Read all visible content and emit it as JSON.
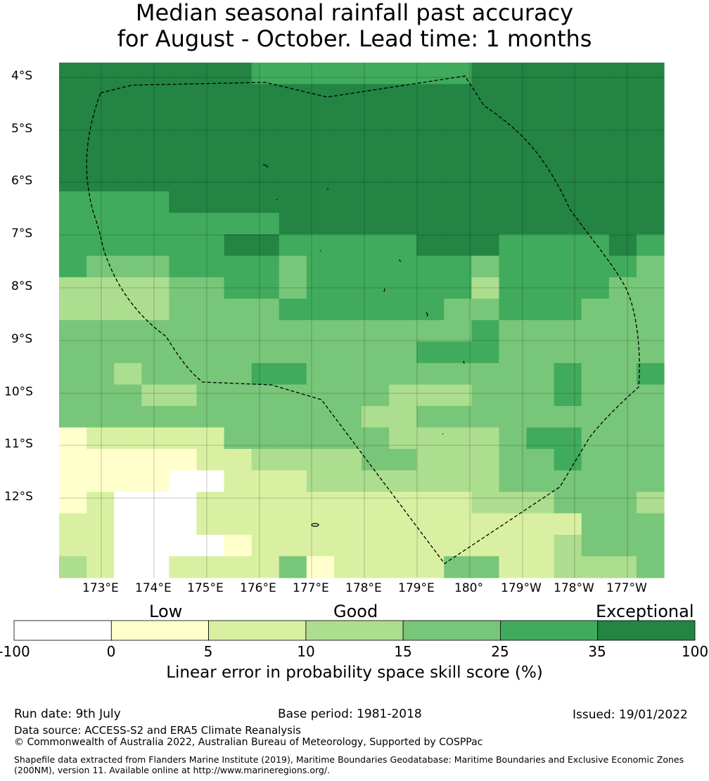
{
  "title": {
    "line1": "Median seasonal rainfall past accuracy",
    "line2": "for August - October. Lead time: 1 months"
  },
  "map": {
    "lat_labels": [
      "4°S",
      "5°S",
      "6°S",
      "7°S",
      "8°S",
      "9°S",
      "10°S",
      "11°S",
      "12°S"
    ],
    "lon_labels": [
      "173°E",
      "174°E",
      "175°E",
      "176°E",
      "177°E",
      "178°E",
      "179°E",
      "180°",
      "179°W",
      "178°W",
      "177°W"
    ],
    "grid": [
      "6666666555555556666666",
      "6666666666666666666666",
      "6666666666666666666666",
      "6666666666666666666666",
      "6666666666666666666666",
      "6666666666666666666666",
      "5555666666666666666666",
      "5555555566666666666666",
      "5555556655555666555565",
      "5444555545555554555554",
      "3333445545555553555544",
      "3333444455555544555444",
      "4444444444444445444444",
      "4444444444444555444444",
      "4434444554444444445445",
      "4443344444443334445444",
      "4444444444433444444444",
      "1222224444443333455444",
      "1111122333344333445444",
      "1111002223333333444444",
      "1200022222222223334443",
      "2200022222222222222444",
      "2200001222222222223444",
      "3200222241222244223334"
    ],
    "eez_boundary_style": "dashed"
  },
  "colorbar": {
    "categories": [
      "Low",
      "Good",
      "Exceptional"
    ],
    "ticks": [
      "-100",
      "0",
      "5",
      "10",
      "15",
      "25",
      "35",
      "100"
    ],
    "colors": [
      "#ffffff",
      "#ffffcc",
      "#d9f0a3",
      "#addd8e",
      "#78c679",
      "#41ab5d",
      "#238443"
    ],
    "label": "Linear error in probability space skill score (%)"
  },
  "footer": {
    "run_date": "Run date: 9th July",
    "base_period": "Base period: 1981-2018",
    "issued": "Issued: 19/01/2022",
    "data_source": "Data source: ACCESS-S2 and ERA5 Climate Reanalysis",
    "copyright": "© Commonwealth of Australia 2022, Australian Bureau of Meteorology, Supported by COSPPac",
    "shapefile": "Shapefile data extracted from Flanders Marine Institute (2019), Maritime Boundaries Geodatabase: Maritime Boundaries and Exclusive Economic Zones (200NM), version 11. Available online at http://www.marineregions.org/."
  }
}
